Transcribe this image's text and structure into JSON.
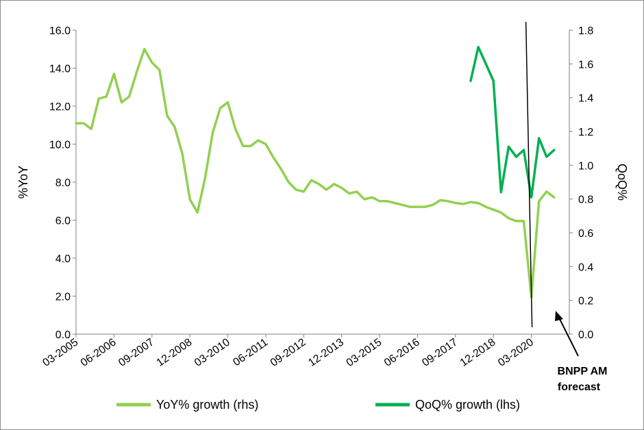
{
  "chart_data": {
    "type": "line",
    "y_left": {
      "label": "%YoY",
      "range": [
        0,
        16
      ],
      "ticks": [
        "0.0",
        "2.0",
        "4.0",
        "6.0",
        "8.0",
        "10.0",
        "12.0",
        "14.0",
        "16.0"
      ]
    },
    "y_right": {
      "label": "QoQ%",
      "range": [
        0,
        1.8
      ],
      "ticks": [
        "0.0",
        "0.2",
        "0.4",
        "0.6",
        "0.8",
        "1.0",
        "1.2",
        "1.4",
        "1.6",
        "1.8"
      ]
    },
    "x_range": [
      0,
      65
    ],
    "x_ticks": [
      {
        "label": "03-2005",
        "i": 0
      },
      {
        "label": "06-2006",
        "i": 5
      },
      {
        "label": "09-2007",
        "i": 10
      },
      {
        "label": "12-2008",
        "i": 15
      },
      {
        "label": "03-2010",
        "i": 20
      },
      {
        "label": "06-2011",
        "i": 25
      },
      {
        "label": "09-2012",
        "i": 30
      },
      {
        "label": "12-2013",
        "i": 35
      },
      {
        "label": "03-2015",
        "i": 40
      },
      {
        "label": "06-2016",
        "i": 45
      },
      {
        "label": "09-2017",
        "i": 50
      },
      {
        "label": "12-2018",
        "i": 55
      },
      {
        "label": "03-2020",
        "i": 60
      }
    ],
    "series": [
      {
        "name": "YoY% growth (rhs)",
        "axis": "left",
        "color": "#92d050",
        "x": [
          0,
          1,
          2,
          3,
          4,
          5,
          6,
          7,
          8,
          9,
          10,
          11,
          12,
          13,
          14,
          15,
          16,
          17,
          18,
          19,
          20,
          21,
          22,
          23,
          24,
          25,
          26,
          27,
          28,
          29,
          30,
          31,
          32,
          33,
          34,
          35,
          36,
          37,
          38,
          39,
          40,
          41,
          42,
          43,
          44,
          45,
          46,
          47,
          48,
          49,
          50,
          51,
          52,
          53,
          54,
          55,
          56,
          57,
          58,
          59,
          60,
          61,
          62,
          63
        ],
        "values": [
          11.1,
          11.1,
          10.8,
          12.4,
          12.5,
          13.7,
          12.2,
          12.5,
          13.8,
          15.0,
          14.3,
          13.9,
          11.5,
          10.9,
          9.5,
          7.1,
          6.4,
          8.2,
          10.6,
          11.9,
          12.2,
          10.8,
          9.9,
          9.9,
          10.2,
          10.0,
          9.3,
          8.7,
          8.0,
          7.6,
          7.5,
          8.1,
          7.9,
          7.6,
          7.9,
          7.7,
          7.4,
          7.5,
          7.1,
          7.2,
          7.0,
          7.0,
          6.9,
          6.8,
          6.7,
          6.7,
          6.7,
          6.8,
          7.05,
          7.0,
          6.9,
          6.85,
          6.95,
          6.9,
          6.7,
          6.55,
          6.4,
          6.1,
          5.95,
          5.95,
          1.95,
          7.0,
          7.5,
          7.2
        ]
      },
      {
        "name": "QoQ% growth (lhs)",
        "axis": "right",
        "color": "#00b050",
        "x": [
          52,
          53,
          54,
          55,
          56,
          57,
          58,
          59,
          60,
          61,
          62,
          63
        ],
        "values": [
          1.5,
          1.7,
          1.6,
          1.5,
          0.84,
          1.11,
          1.05,
          1.09,
          0.81,
          1.16,
          1.05,
          1.09
        ]
      }
    ],
    "annotation": {
      "text_lines": [
        "BNPP AM",
        "forecast"
      ],
      "forecast_line_index": 60
    },
    "legend_placement": "bottom",
    "grid": false
  }
}
